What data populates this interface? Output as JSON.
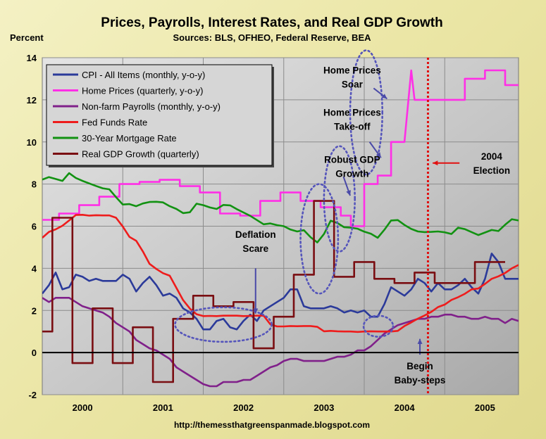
{
  "chart_data": {
    "type": "line",
    "title": "Prices, Payrolls, Interest Rates, and Real GDP Growth",
    "subtitle": "Sources: BLS, OFHEO, Federal Reserve, BEA",
    "ylabel": "Percent",
    "ylim": [
      -2,
      14
    ],
    "yticks": [
      "-2",
      "0",
      "2",
      "4",
      "6",
      "8",
      "10",
      "12",
      "14"
    ],
    "xlim": [
      0,
      71
    ],
    "xticks": [
      {
        "label": "2000",
        "x": 6
      },
      {
        "label": "2001",
        "x": 18
      },
      {
        "label": "2002",
        "x": 30
      },
      {
        "label": "2003",
        "x": 42
      },
      {
        "label": "2004",
        "x": 54
      },
      {
        "label": "2005",
        "x": 66
      }
    ],
    "year_boundaries": [
      12,
      24,
      36,
      48,
      60
    ],
    "grid": true,
    "legend_position": "top-left",
    "source_url": "http://themessthatgreenspanmade.blogspot.com",
    "election_x": 57.5,
    "series": [
      {
        "name": "CPI - All Items (monthly, y-o-y)",
        "color": "#2b3a9a",
        "x": [
          0,
          1,
          2,
          3,
          4,
          5,
          6,
          7,
          8,
          9,
          10,
          11,
          12,
          13,
          14,
          15,
          16,
          17,
          18,
          19,
          20,
          21,
          22,
          23,
          24,
          25,
          26,
          27,
          28,
          29,
          30,
          31,
          32,
          33,
          34,
          35,
          36,
          37,
          38,
          39,
          40,
          41,
          42,
          43,
          44,
          45,
          46,
          47,
          48,
          49,
          50,
          51,
          52,
          53,
          54,
          55,
          56,
          57,
          58,
          59,
          60,
          61,
          62,
          63,
          64,
          65,
          66,
          67,
          68,
          69,
          70,
          71
        ],
        "values": [
          2.8,
          3.2,
          3.8,
          3.0,
          3.1,
          3.7,
          3.6,
          3.4,
          3.5,
          3.4,
          3.4,
          3.4,
          3.7,
          3.5,
          2.9,
          3.3,
          3.6,
          3.2,
          2.7,
          2.8,
          2.6,
          2.1,
          1.9,
          1.6,
          1.1,
          1.1,
          1.5,
          1.6,
          1.2,
          1.1,
          1.5,
          1.8,
          1.5,
          2.0,
          2.2,
          2.4,
          2.6,
          3.0,
          3.0,
          2.2,
          2.1,
          2.1,
          2.1,
          2.2,
          2.1,
          1.9,
          2.0,
          1.9,
          2.0,
          1.7,
          1.7,
          2.3,
          3.1,
          2.9,
          2.7,
          3.0,
          3.5,
          3.3,
          2.9,
          3.3,
          3.0,
          3.0,
          3.2,
          3.5,
          3.1,
          2.8,
          3.5,
          4.7,
          4.3,
          3.5,
          3.5,
          3.5
        ]
      },
      {
        "name": "Home Prices (quarterly, y-o-y)",
        "color": "#ff2fe6",
        "x": [
          0,
          2.5,
          2.5,
          5.5,
          5.5,
          8.5,
          8.5,
          11.5,
          11.5,
          14.5,
          14.5,
          17.5,
          17.5,
          20.5,
          20.5,
          23.5,
          23.5,
          26.5,
          26.5,
          29.5,
          29.5,
          32.5,
          32.5,
          35.5,
          35.5,
          38.5,
          38.5,
          41.5,
          41.5,
          44.5,
          44.5,
          46,
          46,
          48,
          48,
          50,
          50,
          52,
          52,
          54,
          54,
          55,
          55.5,
          57,
          57,
          60,
          60,
          63,
          63,
          66,
          66,
          69,
          69,
          71
        ],
        "values": [
          6.3,
          6.3,
          6.6,
          6.6,
          7.0,
          7.0,
          7.4,
          7.4,
          8.0,
          8.0,
          8.1,
          8.1,
          8.2,
          8.2,
          7.9,
          7.9,
          7.6,
          7.6,
          6.6,
          6.6,
          6.5,
          6.5,
          7.2,
          7.2,
          7.6,
          7.6,
          7.2,
          7.2,
          6.9,
          6.9,
          6.5,
          6.5,
          6.0,
          6.0,
          8.0,
          8.0,
          8.4,
          8.4,
          10.0,
          10.0,
          10.0,
          13.4,
          12.0,
          12.0,
          12.0,
          12.0,
          12.0,
          12.0,
          13.0,
          13.0,
          13.4,
          13.4,
          12.7,
          12.7
        ]
      },
      {
        "name": "Non-farm Payrolls (monthly, y-o-y)",
        "color": "#80208a",
        "x": [
          0,
          1,
          2,
          3,
          4,
          5,
          6,
          7,
          8,
          9,
          10,
          11,
          12,
          13,
          14,
          15,
          16,
          17,
          18,
          19,
          20,
          21,
          22,
          23,
          24,
          25,
          26,
          27,
          28,
          29,
          30,
          31,
          32,
          33,
          34,
          35,
          36,
          37,
          38,
          39,
          40,
          41,
          42,
          43,
          44,
          45,
          46,
          47,
          48,
          49,
          50,
          51,
          52,
          53,
          54,
          55,
          56,
          57,
          58,
          59,
          60,
          61,
          62,
          63,
          64,
          65,
          66,
          67,
          68,
          69,
          70,
          71
        ],
        "values": [
          2.6,
          2.4,
          2.6,
          2.6,
          2.6,
          2.4,
          2.2,
          2.1,
          2.0,
          1.9,
          1.7,
          1.4,
          1.2,
          1.0,
          0.6,
          0.4,
          0.2,
          0.1,
          -0.1,
          -0.3,
          -0.7,
          -0.9,
          -1.1,
          -1.3,
          -1.5,
          -1.6,
          -1.6,
          -1.4,
          -1.4,
          -1.4,
          -1.3,
          -1.3,
          -1.1,
          -0.9,
          -0.7,
          -0.6,
          -0.4,
          -0.3,
          -0.3,
          -0.4,
          -0.4,
          -0.4,
          -0.4,
          -0.3,
          -0.2,
          -0.2,
          -0.1,
          0.1,
          0.1,
          0.3,
          0.6,
          0.9,
          1.1,
          1.3,
          1.4,
          1.5,
          1.6,
          1.6,
          1.7,
          1.7,
          1.8,
          1.8,
          1.7,
          1.7,
          1.6,
          1.6,
          1.7,
          1.6,
          1.6,
          1.4,
          1.6,
          1.5
        ]
      },
      {
        "name": "Fed Funds Rate",
        "color": "#ee1c1c",
        "x": [
          0,
          1,
          2,
          3,
          4,
          5,
          6,
          7,
          8,
          9,
          10,
          11,
          12,
          13,
          14,
          15,
          16,
          17,
          18,
          19,
          20,
          21,
          22,
          23,
          24,
          25,
          26,
          27,
          28,
          29,
          30,
          31,
          32,
          33,
          34,
          35,
          36,
          37,
          38,
          39,
          40,
          41,
          42,
          43,
          44,
          45,
          46,
          47,
          48,
          49,
          50,
          51,
          52,
          53,
          54,
          55,
          56,
          57,
          58,
          59,
          60,
          61,
          62,
          63,
          64,
          65,
          66,
          67,
          68,
          69,
          70,
          71
        ],
        "values": [
          5.45,
          5.73,
          5.85,
          6.02,
          6.27,
          6.53,
          6.54,
          6.5,
          6.52,
          6.51,
          6.51,
          6.4,
          5.98,
          5.49,
          5.31,
          4.8,
          4.21,
          3.97,
          3.77,
          3.65,
          3.07,
          2.49,
          2.09,
          1.82,
          1.73,
          1.74,
          1.73,
          1.75,
          1.75,
          1.75,
          1.73,
          1.74,
          1.75,
          1.75,
          1.34,
          1.24,
          1.24,
          1.26,
          1.25,
          1.26,
          1.26,
          1.22,
          1.01,
          1.03,
          1.01,
          1.0,
          1.0,
          0.98,
          1.0,
          1.01,
          1.0,
          1.0,
          1.0,
          1.03,
          1.26,
          1.43,
          1.61,
          1.76,
          1.93,
          2.16,
          2.28,
          2.5,
          2.63,
          2.79,
          3.0,
          3.04,
          3.26,
          3.5,
          3.62,
          3.78,
          4.0,
          4.16
        ]
      },
      {
        "name": "30-Year Mortgage Rate",
        "color": "#129212",
        "x": [
          0,
          1,
          2,
          3,
          4,
          5,
          6,
          7,
          8,
          9,
          10,
          11,
          12,
          13,
          14,
          15,
          16,
          17,
          18,
          19,
          20,
          21,
          22,
          23,
          24,
          25,
          26,
          27,
          28,
          29,
          30,
          31,
          32,
          33,
          34,
          35,
          36,
          37,
          38,
          39,
          40,
          41,
          42,
          43,
          44,
          45,
          46,
          47,
          48,
          49,
          50,
          51,
          52,
          53,
          54,
          55,
          56,
          57,
          58,
          59,
          60,
          61,
          62,
          63,
          64,
          65,
          66,
          67,
          68,
          69,
          70,
          71
        ],
        "values": [
          8.21,
          8.33,
          8.24,
          8.15,
          8.52,
          8.29,
          8.15,
          8.03,
          7.91,
          7.8,
          7.75,
          7.38,
          7.03,
          7.05,
          6.95,
          7.08,
          7.15,
          7.16,
          7.13,
          6.95,
          6.82,
          6.62,
          6.66,
          7.07,
          7.0,
          6.89,
          6.82,
          7.01,
          6.99,
          6.81,
          6.65,
          6.49,
          6.29,
          6.09,
          6.13,
          6.05,
          6.0,
          5.84,
          5.75,
          5.81,
          5.48,
          5.23,
          5.63,
          6.26,
          6.15,
          5.95,
          5.93,
          5.88,
          5.74,
          5.64,
          5.45,
          5.83,
          6.27,
          6.29,
          6.06,
          5.87,
          5.75,
          5.72,
          5.73,
          5.75,
          5.71,
          5.63,
          5.93,
          5.86,
          5.72,
          5.58,
          5.7,
          5.82,
          5.77,
          6.07,
          6.33,
          6.27
        ]
      },
      {
        "name": "Real GDP Growth (quarterly)",
        "color": "#7a0e12",
        "x": [
          0,
          1.5,
          1.5,
          4.5,
          4.5,
          7.5,
          7.5,
          10.5,
          10.5,
          13.5,
          13.5,
          16.5,
          16.5,
          19.5,
          19.5,
          22.5,
          22.5,
          25.5,
          25.5,
          28.5,
          28.5,
          31.5,
          31.5,
          34.5,
          34.5,
          37.5,
          37.5,
          40.5,
          40.5,
          43.5,
          43.5,
          46.5,
          46.5,
          49.5,
          49.5,
          52.5,
          52.5,
          55.5,
          55.5,
          58.5,
          58.5,
          61.5,
          61.5,
          64.5,
          64.5,
          67.5,
          67.5,
          69
        ],
        "values": [
          1.0,
          1.0,
          6.4,
          6.4,
          -0.5,
          -0.5,
          2.1,
          2.1,
          -0.5,
          -0.5,
          1.2,
          1.2,
          -1.4,
          -1.4,
          1.6,
          1.6,
          2.7,
          2.7,
          2.2,
          2.2,
          2.4,
          2.4,
          0.2,
          0.2,
          1.7,
          1.7,
          3.7,
          3.7,
          7.2,
          7.2,
          3.6,
          3.6,
          4.3,
          4.3,
          3.5,
          3.5,
          3.3,
          3.3,
          3.8,
          3.8,
          3.3,
          3.3,
          3.3,
          3.3,
          4.3,
          4.3,
          4.3,
          4.3
        ]
      }
    ],
    "annotations": [
      {
        "lines": [
          "Home Prices",
          "Soar"
        ],
        "x": 46.2,
        "y": 13.25
      },
      {
        "lines": [
          "Home Prices",
          "Take-off"
        ],
        "x": 46.2,
        "y": 11.25
      },
      {
        "lines": [
          "Robust GDP",
          "Growth"
        ],
        "x": 46.2,
        "y": 9.0
      },
      {
        "lines": [
          "Deflation",
          "Scare"
        ],
        "x": 31.8,
        "y": 5.45
      },
      {
        "lines": [
          "Begin",
          "Baby-steps"
        ],
        "x": 56.3,
        "y": -0.8
      },
      {
        "lines": [
          "2004",
          "Election"
        ],
        "x": 67.0,
        "y": 9.15
      }
    ]
  }
}
